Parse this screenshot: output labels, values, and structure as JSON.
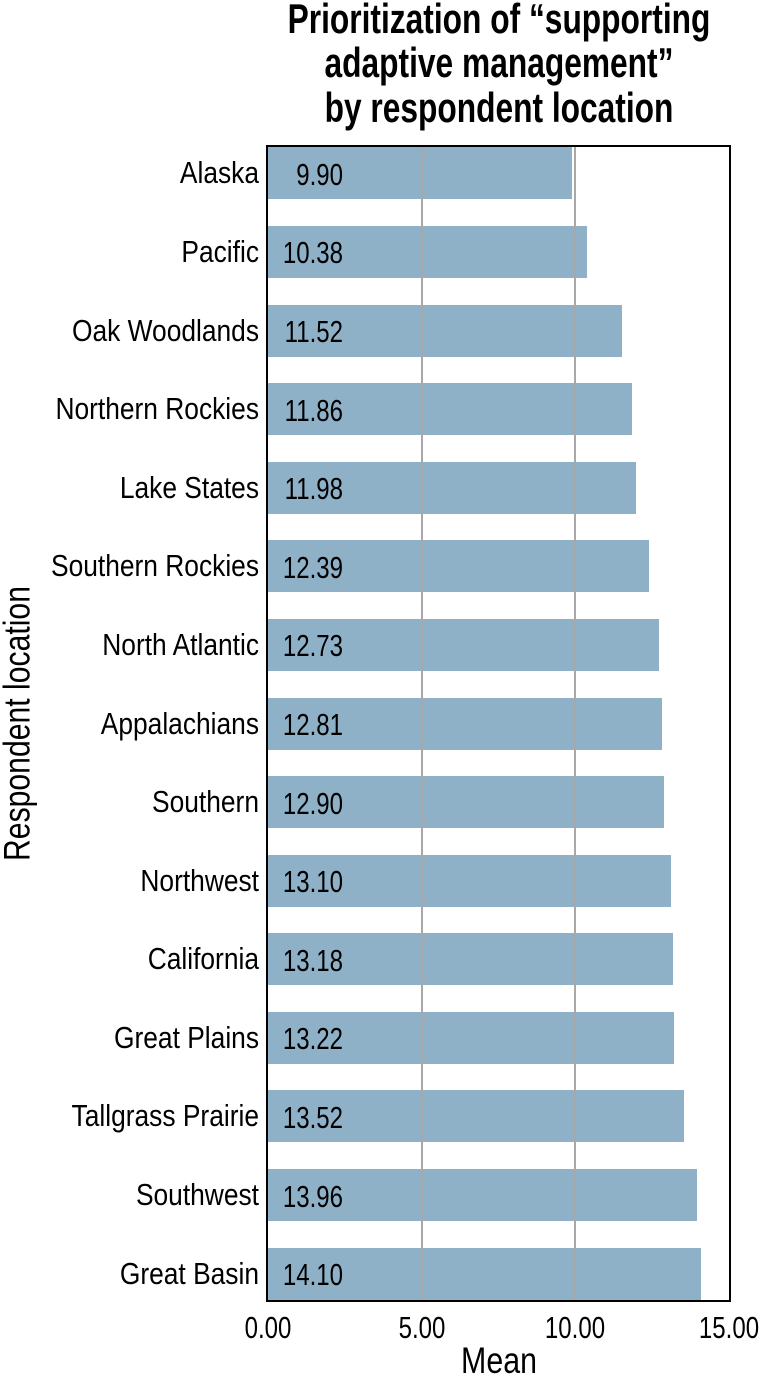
{
  "chart_data": {
    "type": "bar",
    "orientation": "horizontal",
    "title": "Prioritization of “supporting adaptive management” by respondent location",
    "title_lines": [
      "Prioritization of “supporting",
      "adaptive management”",
      "by respondent location"
    ],
    "xlabel": "Mean",
    "ylabel": "Respondent location",
    "categories": [
      "Alaska",
      "Pacific",
      "Oak Woodlands",
      "Northern Rockies",
      "Lake States",
      "Southern Rockies",
      "North Atlantic",
      "Appalachians",
      "Southern",
      "Northwest",
      "California",
      "Great Plains",
      "Tallgrass Prairie",
      "Southwest",
      "Great Basin"
    ],
    "values": [
      9.9,
      10.38,
      11.52,
      11.86,
      11.98,
      12.39,
      12.73,
      12.81,
      12.9,
      13.1,
      13.18,
      13.22,
      13.52,
      13.96,
      14.1
    ],
    "value_labels": [
      "9.90",
      "10.38",
      "11.52",
      "11.86",
      "11.98",
      "12.39",
      "12.73",
      "12.81",
      "12.90",
      "13.10",
      "13.18",
      "13.22",
      "13.52",
      "13.96",
      "14.10"
    ],
    "xlim": [
      0,
      15
    ],
    "xticks": [
      0,
      5,
      10,
      15
    ],
    "xtick_labels": [
      "0.00",
      "5.00",
      "10.00",
      "15.00"
    ],
    "grid": {
      "vertical_lines_at": [
        5,
        10
      ],
      "drawn_over_bars": true
    },
    "legend": "none",
    "colors": {
      "bar_fill": "#8FB1C7",
      "gridline": "#A8A8A8",
      "frame": "#000000",
      "text": "#000000",
      "background": "#FFFFFF"
    }
  }
}
